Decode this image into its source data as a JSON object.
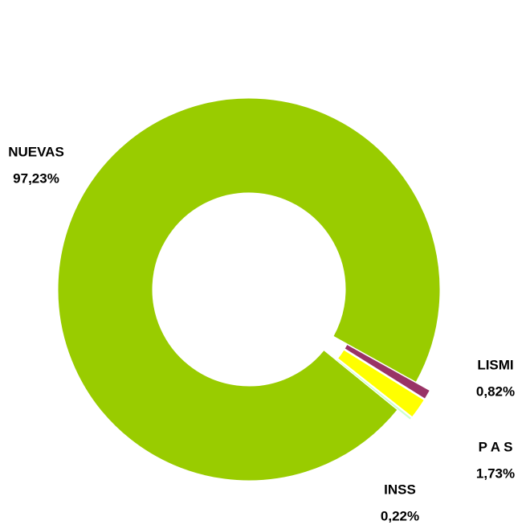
{
  "chart_data": {
    "type": "donut",
    "categories": [
      "NUEVAS",
      "LISMI",
      "P A S",
      "INSS"
    ],
    "values": [
      97.23,
      0.82,
      1.73,
      0.22
    ],
    "value_labels": [
      "97,23%",
      "0,82%",
      "1,73%",
      "0,22%"
    ],
    "colors": [
      "#99cc00",
      "#993366",
      "#ffff00",
      "#ccffcc"
    ]
  }
}
